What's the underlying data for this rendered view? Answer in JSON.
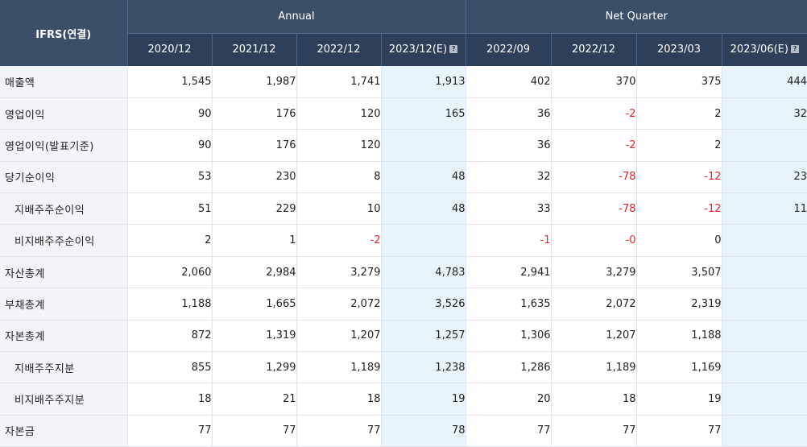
{
  "header": {
    "corner_label": "IFRS(연결)",
    "groups": [
      "Annual",
      "Net Quarter"
    ],
    "periods": [
      {
        "label": "2020/12",
        "estimate": false
      },
      {
        "label": "2021/12",
        "estimate": false
      },
      {
        "label": "2022/12",
        "estimate": false
      },
      {
        "label": "2023/12(E)",
        "estimate": true
      },
      {
        "label": "2022/09",
        "estimate": false
      },
      {
        "label": "2022/12",
        "estimate": false
      },
      {
        "label": "2023/03",
        "estimate": false
      },
      {
        "label": "2023/06(E)",
        "estimate": true
      }
    ]
  },
  "rows": [
    {
      "label": "매출액",
      "indent": false,
      "values": [
        "1,545",
        "1,987",
        "1,741",
        "1,913",
        "402",
        "370",
        "375",
        "444"
      ]
    },
    {
      "label": "영업이익",
      "indent": false,
      "values": [
        "90",
        "176",
        "120",
        "165",
        "36",
        "-2",
        "2",
        "32"
      ]
    },
    {
      "label": "영업이익(발표기준)",
      "indent": false,
      "values": [
        "90",
        "176",
        "120",
        "",
        "36",
        "-2",
        "2",
        ""
      ]
    },
    {
      "label": "당기순이익",
      "indent": false,
      "values": [
        "53",
        "230",
        "8",
        "48",
        "32",
        "-78",
        "-12",
        "23"
      ]
    },
    {
      "label": "지배주주순이익",
      "indent": true,
      "values": [
        "51",
        "229",
        "10",
        "48",
        "33",
        "-78",
        "-12",
        "11"
      ]
    },
    {
      "label": "비지배주주순이익",
      "indent": true,
      "values": [
        "2",
        "1",
        "-2",
        "",
        "-1",
        "-0",
        "0",
        ""
      ]
    },
    {
      "label": "자산총계",
      "indent": false,
      "values": [
        "2,060",
        "2,984",
        "3,279",
        "4,783",
        "2,941",
        "3,279",
        "3,507",
        ""
      ]
    },
    {
      "label": "부채총계",
      "indent": false,
      "values": [
        "1,188",
        "1,665",
        "2,072",
        "3,526",
        "1,635",
        "2,072",
        "2,319",
        ""
      ]
    },
    {
      "label": "자본총계",
      "indent": false,
      "values": [
        "872",
        "1,319",
        "1,207",
        "1,257",
        "1,306",
        "1,207",
        "1,188",
        ""
      ]
    },
    {
      "label": "지배주주지분",
      "indent": true,
      "values": [
        "855",
        "1,299",
        "1,189",
        "1,238",
        "1,286",
        "1,189",
        "1,169",
        ""
      ]
    },
    {
      "label": "비지배주주지분",
      "indent": true,
      "values": [
        "18",
        "21",
        "18",
        "19",
        "20",
        "18",
        "19",
        ""
      ]
    },
    {
      "label": "자본금",
      "indent": false,
      "values": [
        "77",
        "77",
        "77",
        "78",
        "77",
        "77",
        "77",
        ""
      ]
    }
  ],
  "colors": {
    "header_bg": "#3c4f69",
    "subheader_bg": "#2d3f59",
    "label_bg": "#f2f4f8",
    "estimate_bg": "#e8f4fb",
    "negative": "#e4202a"
  }
}
